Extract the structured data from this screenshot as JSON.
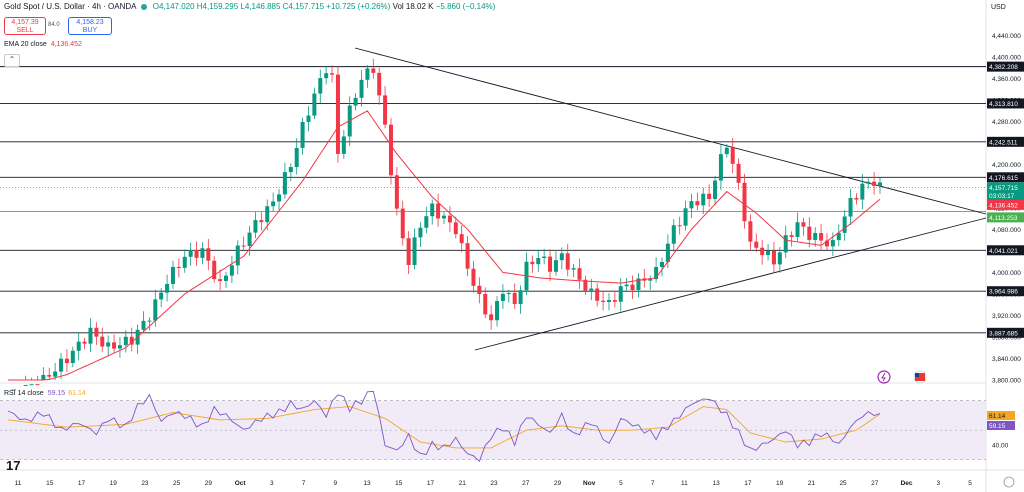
{
  "header": {
    "symbol": "Gold Spot / U.S. Dollar · 4h · OANDA",
    "open": "O4,147.020",
    "high": "H4,159.295",
    "low": "L4,146.885",
    "close": "C4,157.715",
    "change": "+10.725 (+0.26%)",
    "volume": "Vol 18.02 K",
    "vol_change": "−5.860 (−0.14%)"
  },
  "trade": {
    "sell_price": "4,157.39",
    "sell_label": "SELL",
    "spread": "84.0",
    "buy_price": "4,158.23",
    "buy_label": "BUY"
  },
  "ema_legend": {
    "label": "EMA 20 close",
    "value": "4,136.452"
  },
  "rsi_legend": {
    "label": "RSI 14 close",
    "rsi_value": "59.15",
    "ma_value": "61.14"
  },
  "currency": "USD",
  "colors": {
    "up": "#089981",
    "down": "#f23645",
    "ema": "#f23645",
    "rsi": "#7e57c2",
    "rsi_ma": "#f5a623",
    "band": "#ede7f6"
  },
  "chart_data": {
    "type": "candlestick",
    "ylim": [
      3800,
      4480
    ],
    "price_ticks": [
      "4,440.000",
      "4,400.000",
      "4,360.000",
      "4,320.000",
      "4,280.000",
      "4,240.000",
      "4,200.000",
      "4,160.000",
      "4,120.000",
      "4,080.000",
      "4,040.000",
      "4,000.000",
      "3,960.000",
      "3,920.000",
      "3,880.000",
      "3,840.000",
      "3,800.000"
    ],
    "x_ticks": [
      "11",
      "15",
      "17",
      "19",
      "23",
      "25",
      "29",
      "Oct",
      "3",
      "7",
      "9",
      "13",
      "15",
      "17",
      "21",
      "23",
      "27",
      "29",
      "Nov",
      "5",
      "7",
      "11",
      "13",
      "17",
      "19",
      "21",
      "25",
      "27",
      "Dec",
      "3",
      "5"
    ],
    "levels": [
      {
        "value": 4382.208,
        "label": "4,382.208"
      },
      {
        "value": 4313.81,
        "label": "4,313.810"
      },
      {
        "value": 4242.511,
        "label": "4,242.511"
      },
      {
        "value": 4176.615,
        "label": "4,176.615"
      },
      {
        "value": 4041.021,
        "label": "4,041.021"
      },
      {
        "value": 3964.986,
        "label": "3,964.986"
      },
      {
        "value": 3887.685,
        "label": "3,887.685"
      }
    ],
    "green_level": {
      "value": 4113.253,
      "label": "4,113.253"
    },
    "last_price": {
      "value": 4157.715,
      "label": "4,157.715",
      "countdown": "03:03:17"
    },
    "ema_last": {
      "value": 4136.452,
      "label": "4,136.452"
    },
    "close_path": [
      [
        0,
        3770
      ],
      [
        6,
        3800
      ],
      [
        10,
        3840
      ],
      [
        14,
        3890
      ],
      [
        17,
        3860
      ],
      [
        21,
        3875
      ],
      [
        24,
        3920
      ],
      [
        27,
        3985
      ],
      [
        30,
        4030
      ],
      [
        33,
        4040
      ],
      [
        36,
        3975
      ],
      [
        39,
        4040
      ],
      [
        42,
        4090
      ],
      [
        45,
        4130
      ],
      [
        48,
        4200
      ],
      [
        50,
        4270
      ],
      [
        52,
        4330
      ],
      [
        54,
        4380
      ],
      [
        55,
        4360
      ],
      [
        56,
        4220
      ],
      [
        58,
        4300
      ],
      [
        60,
        4360
      ],
      [
        62,
        4380
      ],
      [
        64,
        4270
      ],
      [
        66,
        4110
      ],
      [
        68,
        4020
      ],
      [
        70,
        4090
      ],
      [
        72,
        4120
      ],
      [
        74,
        4100
      ],
      [
        76,
        4080
      ],
      [
        78,
        4010
      ],
      [
        80,
        3950
      ],
      [
        82,
        3910
      ],
      [
        84,
        3970
      ],
      [
        86,
        3940
      ],
      [
        88,
        4010
      ],
      [
        90,
        4030
      ],
      [
        92,
        4010
      ],
      [
        94,
        4030
      ],
      [
        96,
        4000
      ],
      [
        99,
        3960
      ],
      [
        102,
        3940
      ],
      [
        104,
        3970
      ],
      [
        107,
        3980
      ],
      [
        110,
        4000
      ],
      [
        113,
        4080
      ],
      [
        116,
        4130
      ],
      [
        119,
        4140
      ],
      [
        121,
        4210
      ],
      [
        122,
        4240
      ],
      [
        124,
        4160
      ],
      [
        126,
        4050
      ],
      [
        128,
        4040
      ],
      [
        130,
        4020
      ],
      [
        132,
        4060
      ],
      [
        134,
        4090
      ],
      [
        136,
        4070
      ],
      [
        138,
        4060
      ],
      [
        140,
        4050
      ],
      [
        141,
        4080
      ],
      [
        143,
        4130
      ],
      [
        145,
        4160
      ],
      [
        147,
        4170
      ],
      [
        148,
        4158
      ]
    ],
    "ema_path": [
      [
        0,
        3780
      ],
      [
        10,
        3810
      ],
      [
        20,
        3860
      ],
      [
        30,
        3960
      ],
      [
        40,
        4030
      ],
      [
        50,
        4170
      ],
      [
        56,
        4270
      ],
      [
        61,
        4300
      ],
      [
        66,
        4220
      ],
      [
        72,
        4140
      ],
      [
        78,
        4080
      ],
      [
        84,
        4000
      ],
      [
        90,
        3990
      ],
      [
        96,
        3985
      ],
      [
        104,
        3980
      ],
      [
        110,
        3990
      ],
      [
        116,
        4080
      ],
      [
        122,
        4150
      ],
      [
        127,
        4110
      ],
      [
        132,
        4060
      ],
      [
        138,
        4050
      ],
      [
        143,
        4090
      ],
      [
        148,
        4136
      ]
    ],
    "rsi_ylim": [
      25,
      80
    ],
    "rsi_ticks": [
      "40.00"
    ],
    "rsi_band": [
      30,
      70
    ],
    "rsi_path": [
      [
        0,
        63
      ],
      [
        3,
        56
      ],
      [
        6,
        62
      ],
      [
        9,
        50
      ],
      [
        12,
        55
      ],
      [
        15,
        48
      ],
      [
        17,
        58
      ],
      [
        20,
        52
      ],
      [
        22,
        66
      ],
      [
        24,
        73
      ],
      [
        26,
        56
      ],
      [
        28,
        62
      ],
      [
        30,
        60
      ],
      [
        33,
        52
      ],
      [
        35,
        64
      ],
      [
        37,
        60
      ],
      [
        40,
        50
      ],
      [
        43,
        58
      ],
      [
        46,
        62
      ],
      [
        48,
        68
      ],
      [
        50,
        64
      ],
      [
        52,
        70
      ],
      [
        54,
        60
      ],
      [
        56,
        76
      ],
      [
        58,
        65
      ],
      [
        60,
        70
      ],
      [
        62,
        78
      ],
      [
        64,
        40
      ],
      [
        66,
        36
      ],
      [
        68,
        46
      ],
      [
        70,
        32
      ],
      [
        72,
        40
      ],
      [
        74,
        38
      ],
      [
        76,
        44
      ],
      [
        78,
        34
      ],
      [
        80,
        30
      ],
      [
        82,
        46
      ],
      [
        84,
        52
      ],
      [
        86,
        42
      ],
      [
        88,
        60
      ],
      [
        90,
        54
      ],
      [
        92,
        48
      ],
      [
        94,
        60
      ],
      [
        96,
        46
      ],
      [
        99,
        56
      ],
      [
        102,
        40
      ],
      [
        104,
        58
      ],
      [
        107,
        52
      ],
      [
        110,
        46
      ],
      [
        113,
        56
      ],
      [
        116,
        68
      ],
      [
        119,
        72
      ],
      [
        121,
        64
      ],
      [
        122,
        60
      ],
      [
        124,
        48
      ],
      [
        126,
        36
      ],
      [
        128,
        40
      ],
      [
        130,
        44
      ],
      [
        132,
        50
      ],
      [
        134,
        40
      ],
      [
        136,
        42
      ],
      [
        138,
        48
      ],
      [
        140,
        44
      ],
      [
        141,
        40
      ],
      [
        143,
        52
      ],
      [
        145,
        60
      ],
      [
        147,
        62
      ],
      [
        148,
        59
      ]
    ],
    "rsi_ma_path": [
      [
        0,
        57
      ],
      [
        10,
        52
      ],
      [
        20,
        54
      ],
      [
        28,
        62
      ],
      [
        36,
        57
      ],
      [
        44,
        58
      ],
      [
        52,
        64
      ],
      [
        58,
        66
      ],
      [
        64,
        58
      ],
      [
        70,
        42
      ],
      [
        76,
        38
      ],
      [
        82,
        38
      ],
      [
        88,
        50
      ],
      [
        94,
        53
      ],
      [
        100,
        50
      ],
      [
        106,
        50
      ],
      [
        112,
        52
      ],
      [
        118,
        66
      ],
      [
        122,
        64
      ],
      [
        126,
        48
      ],
      [
        132,
        42
      ],
      [
        138,
        44
      ],
      [
        144,
        50
      ],
      [
        148,
        61
      ]
    ]
  }
}
